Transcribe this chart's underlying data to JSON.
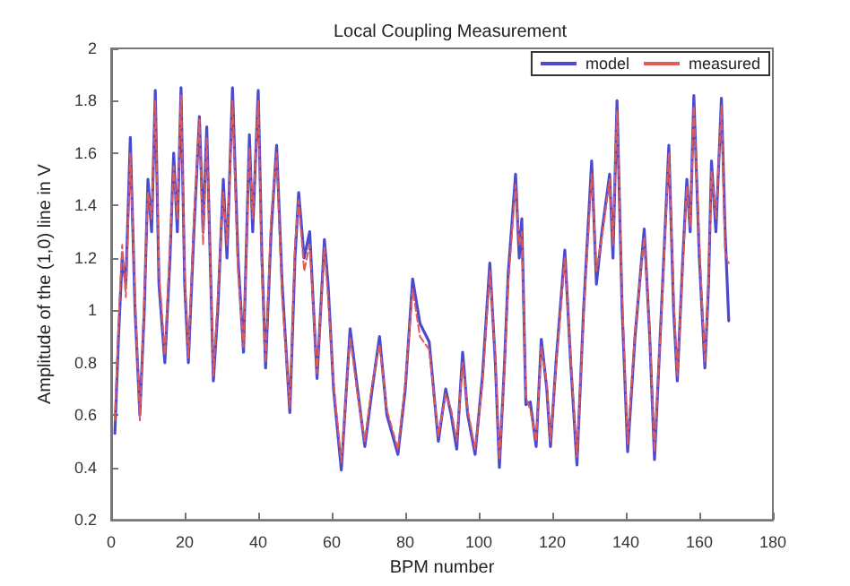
{
  "chart_data": {
    "type": "line",
    "title": "Local Coupling Measurement",
    "xlabel": "BPM number",
    "ylabel": "Amplitude of the (1,0) line in V",
    "xlim": [
      0,
      180
    ],
    "xticks": [
      0,
      20,
      40,
      60,
      80,
      100,
      120,
      140,
      160,
      180
    ],
    "ylim": [
      0.2,
      2
    ],
    "yticks": [
      0.2,
      0.4,
      0.6,
      0.8,
      1,
      1.2,
      1.4,
      1.6,
      1.8,
      2
    ],
    "grid": false,
    "legend": "top right",
    "marker": "none",
    "series": [
      {
        "name": "model",
        "color": "#4b4bd0",
        "line_style": "solid",
        "x": [
          1,
          2,
          3,
          4,
          5.2,
          6.5,
          7.8,
          9,
          10,
          11,
          12,
          13,
          14.6,
          16,
          17,
          18,
          19,
          20,
          21,
          22.5,
          24,
          25,
          26,
          27.8,
          29,
          30.5,
          31.5,
          33,
          34.5,
          36,
          37.6,
          38.5,
          40,
          41,
          42,
          43.5,
          45,
          46.5,
          48.6,
          50,
          51,
          52.5,
          54,
          56,
          58,
          59,
          60.5,
          62.6,
          65,
          67,
          69,
          71,
          73,
          75,
          78,
          80,
          82,
          84,
          86.5,
          89,
          91,
          92.5,
          94,
          95.6,
          97,
          99,
          101,
          103,
          104.5,
          105.6,
          107,
          108,
          110,
          111,
          111.7,
          112.8,
          114,
          115.6,
          117,
          118.5,
          119.5,
          121,
          123.4,
          125,
          126.7,
          128.5,
          130.7,
          132,
          133.5,
          135.6,
          136.5,
          137.6,
          139,
          140.5,
          142.5,
          145,
          146.5,
          147.8,
          150,
          151.7,
          153,
          154,
          155.5,
          156.6,
          157.5,
          158.5,
          160,
          161.5,
          162.5,
          163.3,
          164.5,
          166,
          167,
          168
        ],
        "values": [
          0.53,
          0.9,
          1.2,
          1.1,
          1.66,
          1.0,
          0.6,
          1.0,
          1.5,
          1.3,
          1.84,
          1.1,
          0.8,
          1.2,
          1.6,
          1.3,
          1.85,
          1.1,
          0.8,
          1.3,
          1.74,
          1.3,
          1.7,
          0.73,
          1.0,
          1.5,
          1.2,
          1.85,
          1.2,
          0.84,
          1.67,
          1.3,
          1.84,
          1.2,
          0.78,
          1.3,
          1.63,
          1.1,
          0.61,
          1.2,
          1.45,
          1.2,
          1.3,
          0.74,
          1.27,
          1.1,
          0.7,
          0.39,
          0.93,
          0.7,
          0.48,
          0.7,
          0.9,
          0.6,
          0.45,
          0.7,
          1.12,
          0.95,
          0.88,
          0.5,
          0.7,
          0.6,
          0.47,
          0.84,
          0.6,
          0.45,
          0.75,
          1.18,
          0.8,
          0.4,
          0.8,
          1.14,
          1.52,
          1.2,
          1.35,
          0.64,
          0.65,
          0.48,
          0.89,
          0.7,
          0.48,
          0.8,
          1.23,
          0.8,
          0.41,
          1.0,
          1.57,
          1.1,
          1.3,
          1.52,
          1.2,
          1.8,
          1.0,
          0.46,
          0.9,
          1.31,
          0.9,
          0.43,
          1.1,
          1.63,
          1.0,
          0.73,
          1.2,
          1.5,
          1.3,
          1.82,
          1.2,
          0.78,
          1.1,
          1.57,
          1.3,
          1.81,
          1.3,
          0.96
        ]
      },
      {
        "name": "measured",
        "color": "#e05a5a",
        "line_style": "dashed",
        "x": [
          1,
          2,
          3,
          4,
          5.2,
          6.5,
          7.8,
          9,
          10,
          11,
          12,
          13,
          14.6,
          16,
          17,
          18,
          19,
          20,
          21,
          22.5,
          24,
          25,
          26,
          27.8,
          29,
          30.5,
          31.5,
          33,
          34.5,
          36,
          37.6,
          38.5,
          40,
          41,
          42,
          43.5,
          45,
          46.5,
          48.6,
          50,
          51,
          52.5,
          54,
          56,
          58,
          59,
          60.5,
          62.6,
          65,
          67,
          69,
          71,
          73,
          75,
          78,
          80,
          82,
          84,
          86.5,
          89,
          91,
          92.5,
          94,
          95.6,
          97,
          99,
          101,
          103,
          104.5,
          105.6,
          107,
          108,
          110,
          111,
          111.7,
          112.8,
          114,
          115.6,
          117,
          118.5,
          119.5,
          121,
          123.4,
          125,
          126.7,
          128.5,
          130.7,
          132,
          133.5,
          135.6,
          136.5,
          137.6,
          139,
          140.5,
          142.5,
          145,
          146.5,
          147.8,
          150,
          151.7,
          153,
          154,
          155.5,
          156.6,
          157.5,
          158.5,
          160,
          161.5,
          162.5,
          163.3,
          164.5,
          166,
          167,
          168
        ],
        "values": [
          0.58,
          0.95,
          1.25,
          1.05,
          1.6,
          1.05,
          0.58,
          1.05,
          1.45,
          1.35,
          1.8,
          1.15,
          0.83,
          1.25,
          1.55,
          1.35,
          1.82,
          1.15,
          0.82,
          1.35,
          1.73,
          1.25,
          1.66,
          0.75,
          1.05,
          1.45,
          1.25,
          1.8,
          1.15,
          0.86,
          1.62,
          1.35,
          1.8,
          1.15,
          0.8,
          1.35,
          1.6,
          1.05,
          0.63,
          1.25,
          1.42,
          1.15,
          1.25,
          0.76,
          1.24,
          1.05,
          0.72,
          0.42,
          0.9,
          0.68,
          0.5,
          0.72,
          0.87,
          0.62,
          0.47,
          0.72,
          1.08,
          0.9,
          0.85,
          0.52,
          0.68,
          0.62,
          0.5,
          0.8,
          0.62,
          0.47,
          0.72,
          1.15,
          0.82,
          0.43,
          0.78,
          1.1,
          1.48,
          1.25,
          1.3,
          0.67,
          0.62,
          0.5,
          0.86,
          0.72,
          0.5,
          0.78,
          1.2,
          0.82,
          0.44,
          0.98,
          1.52,
          1.15,
          1.28,
          1.5,
          1.25,
          1.76,
          1.05,
          0.49,
          0.92,
          1.28,
          0.92,
          0.46,
          1.08,
          1.6,
          1.05,
          0.75,
          1.18,
          1.47,
          1.32,
          1.78,
          1.25,
          0.8,
          1.12,
          1.53,
          1.35,
          1.78,
          1.22,
          1.18
        ]
      }
    ]
  }
}
